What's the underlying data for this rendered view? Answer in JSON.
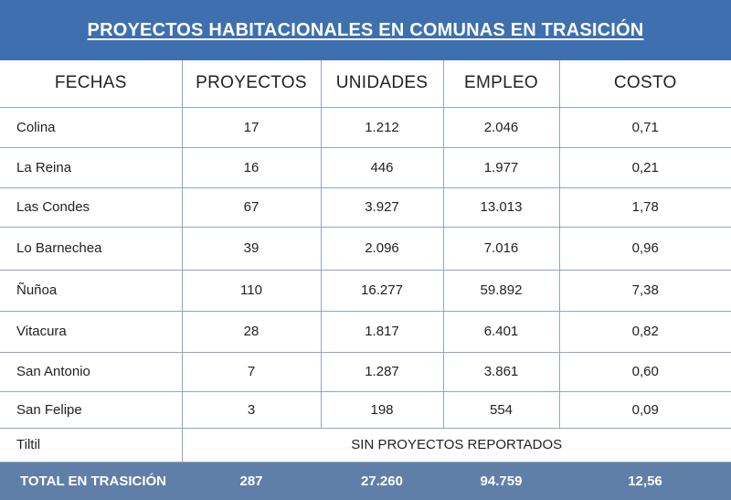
{
  "title": "PROYECTOS HABITACIONALES EN COMUNAS EN TRASICIÓN",
  "headers": [
    "FECHAS",
    "PROYECTOS",
    "UNIDADES",
    "EMPLEO",
    "COSTO"
  ],
  "rows": [
    {
      "comuna": "Colina",
      "proyectos": "17",
      "unidades": "1.212",
      "empleo": "2.046",
      "costo": "0,71"
    },
    {
      "comuna": "La Reina",
      "proyectos": "16",
      "unidades": "446",
      "empleo": "1.977",
      "costo": "0,21"
    },
    {
      "comuna": "Las Condes",
      "proyectos": "67",
      "unidades": "3.927",
      "empleo": "13.013",
      "costo": "1,78"
    },
    {
      "comuna": "Lo Barnechea",
      "proyectos": "39",
      "unidades": "2.096",
      "empleo": "7.016",
      "costo": "0,96"
    },
    {
      "comuna": "Ñuñoa",
      "proyectos": "110",
      "unidades": "16.277",
      "empleo": "59.892",
      "costo": "7,38"
    },
    {
      "comuna": "Vitacura",
      "proyectos": "28",
      "unidades": "1.817",
      "empleo": "6.401",
      "costo": "0,82"
    },
    {
      "comuna": "San Antonio",
      "proyectos": "7",
      "unidades": "1.287",
      "empleo": "3.861",
      "costo": "0,60"
    },
    {
      "comuna": "San Felipe",
      "proyectos": "3",
      "unidades": "198",
      "empleo": "554",
      "costo": "0,09"
    }
  ],
  "special_row": {
    "comuna": "Tiltil",
    "note": "SIN PROYECTOS REPORTADOS"
  },
  "total": {
    "label": "TOTAL EN TRASICIÓN",
    "proyectos": "287",
    "unidades": "27.260",
    "empleo": "94.759",
    "costo": "12,56"
  },
  "colors": {
    "header_band": "#3e6fae",
    "total_band": "#5f7fa8",
    "grid": "#8fa6c6"
  }
}
